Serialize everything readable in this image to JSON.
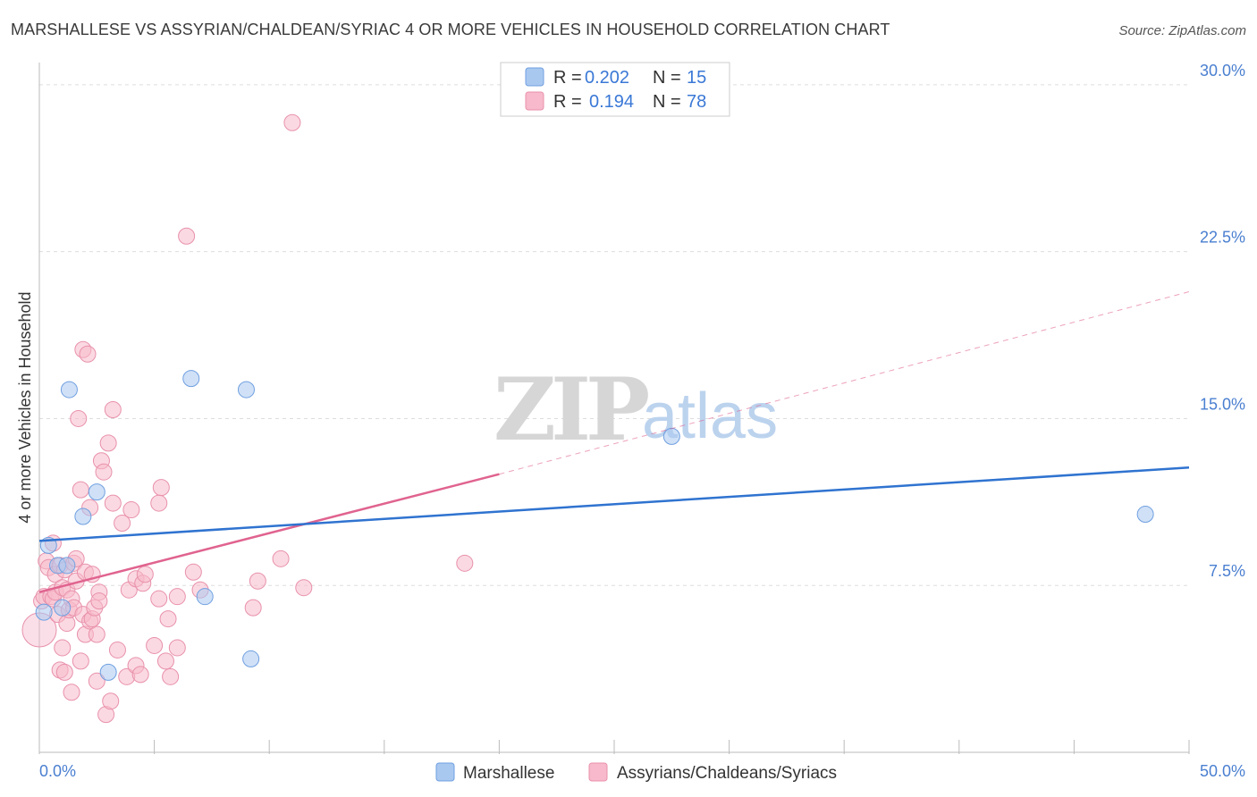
{
  "chart_data": {
    "type": "scatter",
    "title": "MARSHALLESE VS ASSYRIAN/CHALDEAN/SYRIAC 4 OR MORE VEHICLES IN HOUSEHOLD CORRELATION CHART",
    "source": "Source: ZipAtlas.com",
    "xlabel": "",
    "ylabel": "4 or more Vehicles in Household",
    "xlim": [
      0,
      50
    ],
    "ylim": [
      0,
      31
    ],
    "x_tick_labels": [
      "0.0%",
      "50.0%"
    ],
    "y_ticks": [
      7.5,
      15.0,
      22.5,
      30.0
    ],
    "y_tick_labels": [
      "7.5%",
      "15.0%",
      "22.5%",
      "30.0%"
    ],
    "watermark": {
      "zip": "ZIP",
      "atlas": "atlas"
    },
    "legend": {
      "r_label": "R =",
      "n_label": "N =",
      "entries": [
        {
          "name": "Marshallese",
          "r": "0.202",
          "n": "15",
          "color": "#a9c8f0"
        },
        {
          "name": "Assyrians/Chaldeans/Syriacs",
          "r": "0.194",
          "n": "78",
          "color": "#f7b9cb"
        }
      ]
    },
    "series": [
      {
        "name": "Marshallese",
        "color": "#a9c8f0",
        "stroke": "#6f9fe0",
        "line_color": "#2f73d0",
        "trend": {
          "x0": 0,
          "y0": 9.5,
          "x1": 50,
          "y1": 12.8
        },
        "points": [
          [
            0.2,
            6.3
          ],
          [
            0.4,
            9.3
          ],
          [
            0.8,
            8.4
          ],
          [
            1.0,
            6.5
          ],
          [
            1.2,
            8.4
          ],
          [
            1.3,
            16.3
          ],
          [
            1.9,
            10.6
          ],
          [
            2.5,
            11.7
          ],
          [
            3.0,
            3.6
          ],
          [
            6.6,
            16.8
          ],
          [
            7.2,
            7.0
          ],
          [
            9.0,
            16.3
          ],
          [
            9.2,
            4.2
          ],
          [
            27.5,
            14.2
          ],
          [
            48.1,
            10.7
          ]
        ]
      },
      {
        "name": "Assyrians/Chaldeans/Syriacs",
        "color": "#f7b9cb",
        "stroke": "#e891ab",
        "line_color": "#e0638f",
        "trend": {
          "x0": 0,
          "y0": 7.2,
          "x1": 20,
          "y1": 12.5
        },
        "trend_dashed": {
          "x0": 20,
          "y0": 12.5,
          "x1": 50,
          "y1": 20.7
        },
        "points": [
          [
            0.0,
            5.5
          ],
          [
            0.1,
            6.8
          ],
          [
            0.2,
            7.0
          ],
          [
            0.3,
            8.6
          ],
          [
            0.4,
            8.3
          ],
          [
            0.5,
            7.0
          ],
          [
            0.6,
            9.4
          ],
          [
            0.6,
            6.9
          ],
          [
            0.7,
            8.0
          ],
          [
            0.7,
            7.2
          ],
          [
            0.8,
            6.2
          ],
          [
            0.9,
            8.4
          ],
          [
            0.9,
            3.7
          ],
          [
            1.0,
            7.4
          ],
          [
            1.0,
            4.7
          ],
          [
            1.1,
            8.2
          ],
          [
            1.1,
            3.6
          ],
          [
            1.2,
            7.3
          ],
          [
            1.2,
            5.8
          ],
          [
            1.3,
            6.4
          ],
          [
            1.4,
            6.9
          ],
          [
            1.4,
            2.7
          ],
          [
            1.5,
            6.5
          ],
          [
            1.5,
            8.5
          ],
          [
            1.6,
            7.7
          ],
          [
            1.6,
            8.7
          ],
          [
            1.7,
            15.0
          ],
          [
            1.8,
            11.8
          ],
          [
            1.8,
            4.1
          ],
          [
            1.9,
            18.1
          ],
          [
            1.9,
            6.2
          ],
          [
            2.0,
            8.1
          ],
          [
            2.0,
            5.3
          ],
          [
            2.1,
            17.9
          ],
          [
            2.2,
            11.0
          ],
          [
            2.2,
            5.9
          ],
          [
            2.3,
            6.0
          ],
          [
            2.3,
            8.0
          ],
          [
            2.4,
            6.5
          ],
          [
            2.5,
            3.2
          ],
          [
            2.5,
            5.3
          ],
          [
            2.6,
            7.2
          ],
          [
            2.6,
            6.8
          ],
          [
            2.7,
            13.1
          ],
          [
            2.8,
            12.6
          ],
          [
            2.9,
            1.7
          ],
          [
            3.0,
            13.9
          ],
          [
            3.1,
            2.3
          ],
          [
            3.2,
            15.4
          ],
          [
            3.2,
            11.2
          ],
          [
            3.4,
            4.6
          ],
          [
            3.6,
            10.3
          ],
          [
            3.8,
            3.4
          ],
          [
            3.9,
            7.3
          ],
          [
            4.0,
            10.9
          ],
          [
            4.2,
            3.9
          ],
          [
            4.2,
            7.8
          ],
          [
            4.4,
            3.5
          ],
          [
            4.5,
            7.6
          ],
          [
            4.6,
            8.0
          ],
          [
            5.0,
            4.8
          ],
          [
            5.2,
            11.2
          ],
          [
            5.2,
            6.9
          ],
          [
            5.3,
            11.9
          ],
          [
            5.5,
            4.1
          ],
          [
            5.6,
            6.0
          ],
          [
            5.7,
            3.4
          ],
          [
            6.0,
            4.7
          ],
          [
            6.0,
            7.0
          ],
          [
            6.4,
            23.2
          ],
          [
            6.7,
            8.1
          ],
          [
            7.0,
            7.3
          ],
          [
            9.3,
            6.5
          ],
          [
            9.5,
            7.7
          ],
          [
            10.5,
            8.7
          ],
          [
            11.0,
            28.3
          ],
          [
            11.5,
            7.4
          ],
          [
            18.5,
            8.5
          ]
        ]
      }
    ]
  }
}
